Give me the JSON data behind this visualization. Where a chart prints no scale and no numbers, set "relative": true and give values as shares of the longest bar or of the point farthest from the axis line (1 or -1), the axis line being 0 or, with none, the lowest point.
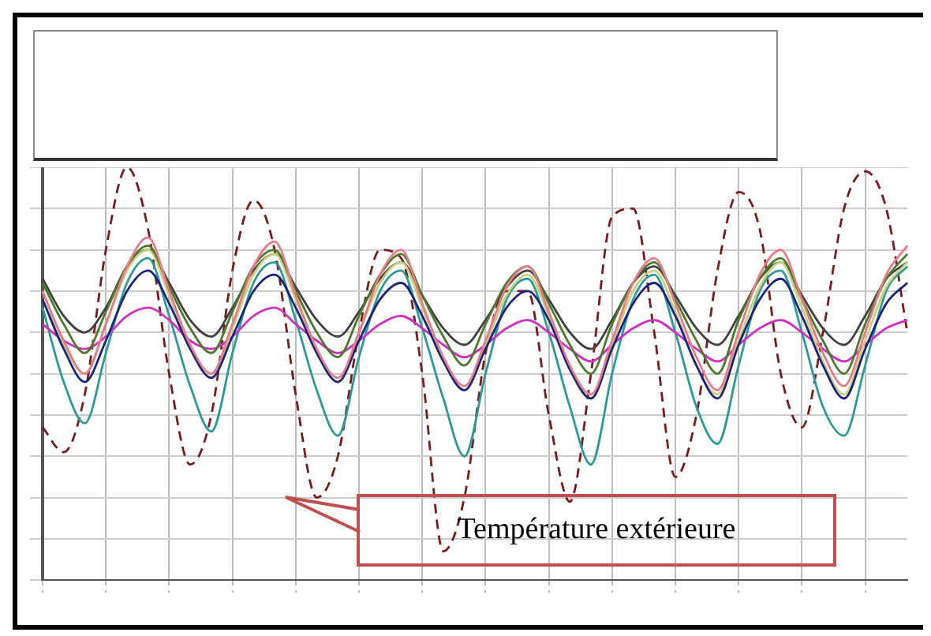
{
  "chart_data": {
    "type": "line",
    "relative": true,
    "grid": true,
    "legend": false,
    "marker": "none",
    "line_style": "solid",
    "categories": [
      null,
      null,
      null,
      null,
      null,
      null,
      null,
      null,
      null,
      null,
      null,
      null,
      null,
      null,
      null,
      null,
      null,
      null,
      null,
      null,
      null,
      null,
      null,
      null,
      null,
      null,
      null,
      null,
      null,
      null,
      null,
      null,
      null,
      null,
      null,
      null,
      null,
      null,
      null,
      null,
      null,
      null
    ],
    "annotations": [
      "Température extérieure"
    ],
    "series": [
      {
        "color": "#e87a8a",
        "values": [
          0.7,
          0.58,
          0.5,
          0.62,
          0.76,
          0.83,
          0.7,
          0.57,
          0.5,
          0.62,
          0.76,
          0.82,
          0.69,
          0.56,
          0.49,
          0.6,
          0.74,
          0.8,
          0.67,
          0.54,
          0.47,
          0.58,
          0.71,
          0.76,
          0.65,
          0.52,
          0.45,
          0.58,
          0.72,
          0.78,
          0.67,
          0.54,
          0.46,
          0.6,
          0.74,
          0.8,
          0.68,
          0.55,
          0.47,
          0.6,
          0.74,
          0.81
        ]
      },
      {
        "color": "#4a7a2a",
        "values": [
          0.72,
          0.62,
          0.55,
          0.65,
          0.76,
          0.81,
          0.71,
          0.61,
          0.55,
          0.65,
          0.76,
          0.8,
          0.7,
          0.6,
          0.54,
          0.64,
          0.74,
          0.79,
          0.69,
          0.59,
          0.52,
          0.62,
          0.72,
          0.76,
          0.67,
          0.57,
          0.5,
          0.62,
          0.72,
          0.77,
          0.68,
          0.58,
          0.5,
          0.63,
          0.73,
          0.78,
          0.68,
          0.58,
          0.5,
          0.62,
          0.73,
          0.79
        ]
      },
      {
        "color": "#1a237e",
        "values": [
          0.68,
          0.56,
          0.48,
          0.58,
          0.7,
          0.75,
          0.67,
          0.56,
          0.49,
          0.59,
          0.7,
          0.74,
          0.66,
          0.55,
          0.48,
          0.58,
          0.68,
          0.72,
          0.64,
          0.53,
          0.46,
          0.56,
          0.66,
          0.7,
          0.63,
          0.51,
          0.44,
          0.56,
          0.67,
          0.72,
          0.64,
          0.52,
          0.44,
          0.57,
          0.68,
          0.73,
          0.64,
          0.52,
          0.44,
          0.56,
          0.67,
          0.72
        ]
      },
      {
        "color": "#c8d27a",
        "values": [
          0.7,
          0.57,
          0.5,
          0.62,
          0.75,
          0.8,
          0.69,
          0.56,
          0.49,
          0.61,
          0.74,
          0.79,
          0.68,
          0.55,
          0.48,
          0.6,
          0.72,
          0.77,
          0.66,
          0.53,
          0.46,
          0.57,
          0.69,
          0.74,
          0.64,
          0.51,
          0.44,
          0.57,
          0.7,
          0.75,
          0.65,
          0.52,
          0.45,
          0.58,
          0.71,
          0.77,
          0.66,
          0.53,
          0.45,
          0.58,
          0.71,
          0.77
        ]
      },
      {
        "color": "#d030c0",
        "values": [
          0.62,
          0.58,
          0.56,
          0.59,
          0.64,
          0.66,
          0.63,
          0.58,
          0.56,
          0.59,
          0.64,
          0.66,
          0.62,
          0.58,
          0.55,
          0.58,
          0.62,
          0.64,
          0.61,
          0.57,
          0.54,
          0.57,
          0.61,
          0.63,
          0.6,
          0.56,
          0.53,
          0.57,
          0.61,
          0.63,
          0.6,
          0.56,
          0.53,
          0.57,
          0.61,
          0.63,
          0.6,
          0.56,
          0.53,
          0.57,
          0.61,
          0.63
        ]
      },
      {
        "color": "#2a9a9a",
        "values": [
          0.66,
          0.48,
          0.38,
          0.55,
          0.72,
          0.78,
          0.64,
          0.47,
          0.36,
          0.55,
          0.72,
          0.77,
          0.63,
          0.46,
          0.35,
          0.54,
          0.7,
          0.75,
          0.61,
          0.44,
          0.3,
          0.5,
          0.68,
          0.73,
          0.6,
          0.42,
          0.28,
          0.5,
          0.68,
          0.74,
          0.6,
          0.42,
          0.33,
          0.52,
          0.7,
          0.75,
          0.6,
          0.42,
          0.35,
          0.52,
          0.7,
          0.76
        ]
      },
      {
        "color": "#404040",
        "values": [
          0.73,
          0.64,
          0.6,
          0.66,
          0.76,
          0.8,
          0.72,
          0.63,
          0.59,
          0.66,
          0.75,
          0.79,
          0.71,
          0.63,
          0.59,
          0.65,
          0.73,
          0.77,
          0.69,
          0.61,
          0.57,
          0.63,
          0.71,
          0.75,
          0.68,
          0.6,
          0.56,
          0.63,
          0.72,
          0.76,
          0.69,
          0.61,
          0.57,
          0.64,
          0.73,
          0.77,
          0.69,
          0.61,
          0.57,
          0.64,
          0.73,
          0.77
        ]
      },
      {
        "color": "#7a1a1a",
        "line_style": "dashed",
        "values": [
          0.37,
          0.31,
          0.45,
          0.8,
          1.0,
          0.85,
          0.5,
          0.28,
          0.4,
          0.75,
          0.92,
          0.8,
          0.45,
          0.2,
          0.3,
          0.6,
          0.8,
          0.78,
          0.5,
          0.07,
          0.2,
          0.55,
          0.7,
          0.7,
          0.4,
          0.19,
          0.5,
          0.88,
          0.9,
          0.6,
          0.25,
          0.4,
          0.75,
          0.94,
          0.85,
          0.5,
          0.37,
          0.6,
          0.9,
          0.99,
          0.9,
          0.6
        ]
      }
    ]
  }
}
